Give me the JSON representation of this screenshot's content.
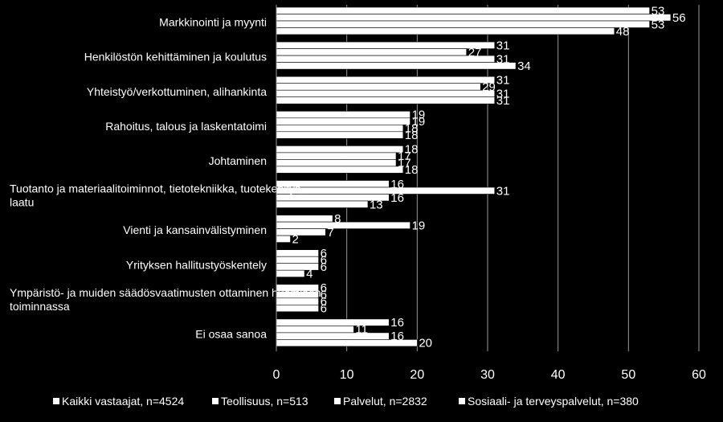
{
  "chart_data": {
    "type": "bar",
    "orientation": "horizontal",
    "categories": [
      "Markkinointi ja myynti",
      "Henkilöstön kehittäminen ja koulutus",
      "Yhteistyö/verkottuminen, alihankinta",
      "Rahoitus, talous ja laskentatoimi",
      "Johtaminen",
      "Tuotanto ja materiaalitoiminnot, tietotekniikka, tuotekehitys, laatu",
      "Vienti ja kansainvälistyminen",
      "Yrityksen hallitustyöskentely",
      "Ympäristö- ja muiden säädösvaatimusten ottaminen huomioon toiminnassa",
      "Ei osaa sanoa"
    ],
    "category_lines": [
      [
        "Markkinointi ja myynti"
      ],
      [
        "Henkilöstön kehittäminen ja koulutus"
      ],
      [
        "Yhteistyö/verkottuminen, alihankinta"
      ],
      [
        "Rahoitus, talous ja laskentatoimi"
      ],
      [
        "Johtaminen"
      ],
      [
        "Tuotanto ja materiaalitoiminnot, tietotekniikka, tuotekehitys,",
        "laatu"
      ],
      [
        "Vienti ja kansainvälistyminen"
      ],
      [
        "Yrityksen hallitustyöskentely"
      ],
      [
        "Ympäristö- ja muiden säädösvaatimusten ottaminen huomioon",
        "toiminnassa"
      ],
      [
        "Ei osaa sanoa"
      ]
    ],
    "series": [
      {
        "name": "Kaikki vastaajat, n=4524",
        "values": [
          53,
          31,
          31,
          19,
          18,
          16,
          8,
          6,
          6,
          16
        ]
      },
      {
        "name": "Teollisuus, n=513",
        "values": [
          56,
          27,
          29,
          19,
          17,
          31,
          19,
          6,
          6,
          11
        ]
      },
      {
        "name": "Palvelut, n=2832",
        "values": [
          53,
          31,
          31,
          18,
          17,
          16,
          7,
          6,
          6,
          16
        ]
      },
      {
        "name": "Sosiaali- ja terveyspalvelut, n=380",
        "values": [
          48,
          34,
          31,
          18,
          18,
          13,
          2,
          4,
          6,
          20
        ]
      }
    ],
    "xlim": [
      0,
      60
    ],
    "xticks": [
      0,
      10,
      20,
      30,
      40,
      50,
      60
    ],
    "grid": true,
    "legend_position": "bottom",
    "colors": {
      "background": "#000000",
      "bar": "#ffffff",
      "grid": "#9a9a9a"
    }
  }
}
